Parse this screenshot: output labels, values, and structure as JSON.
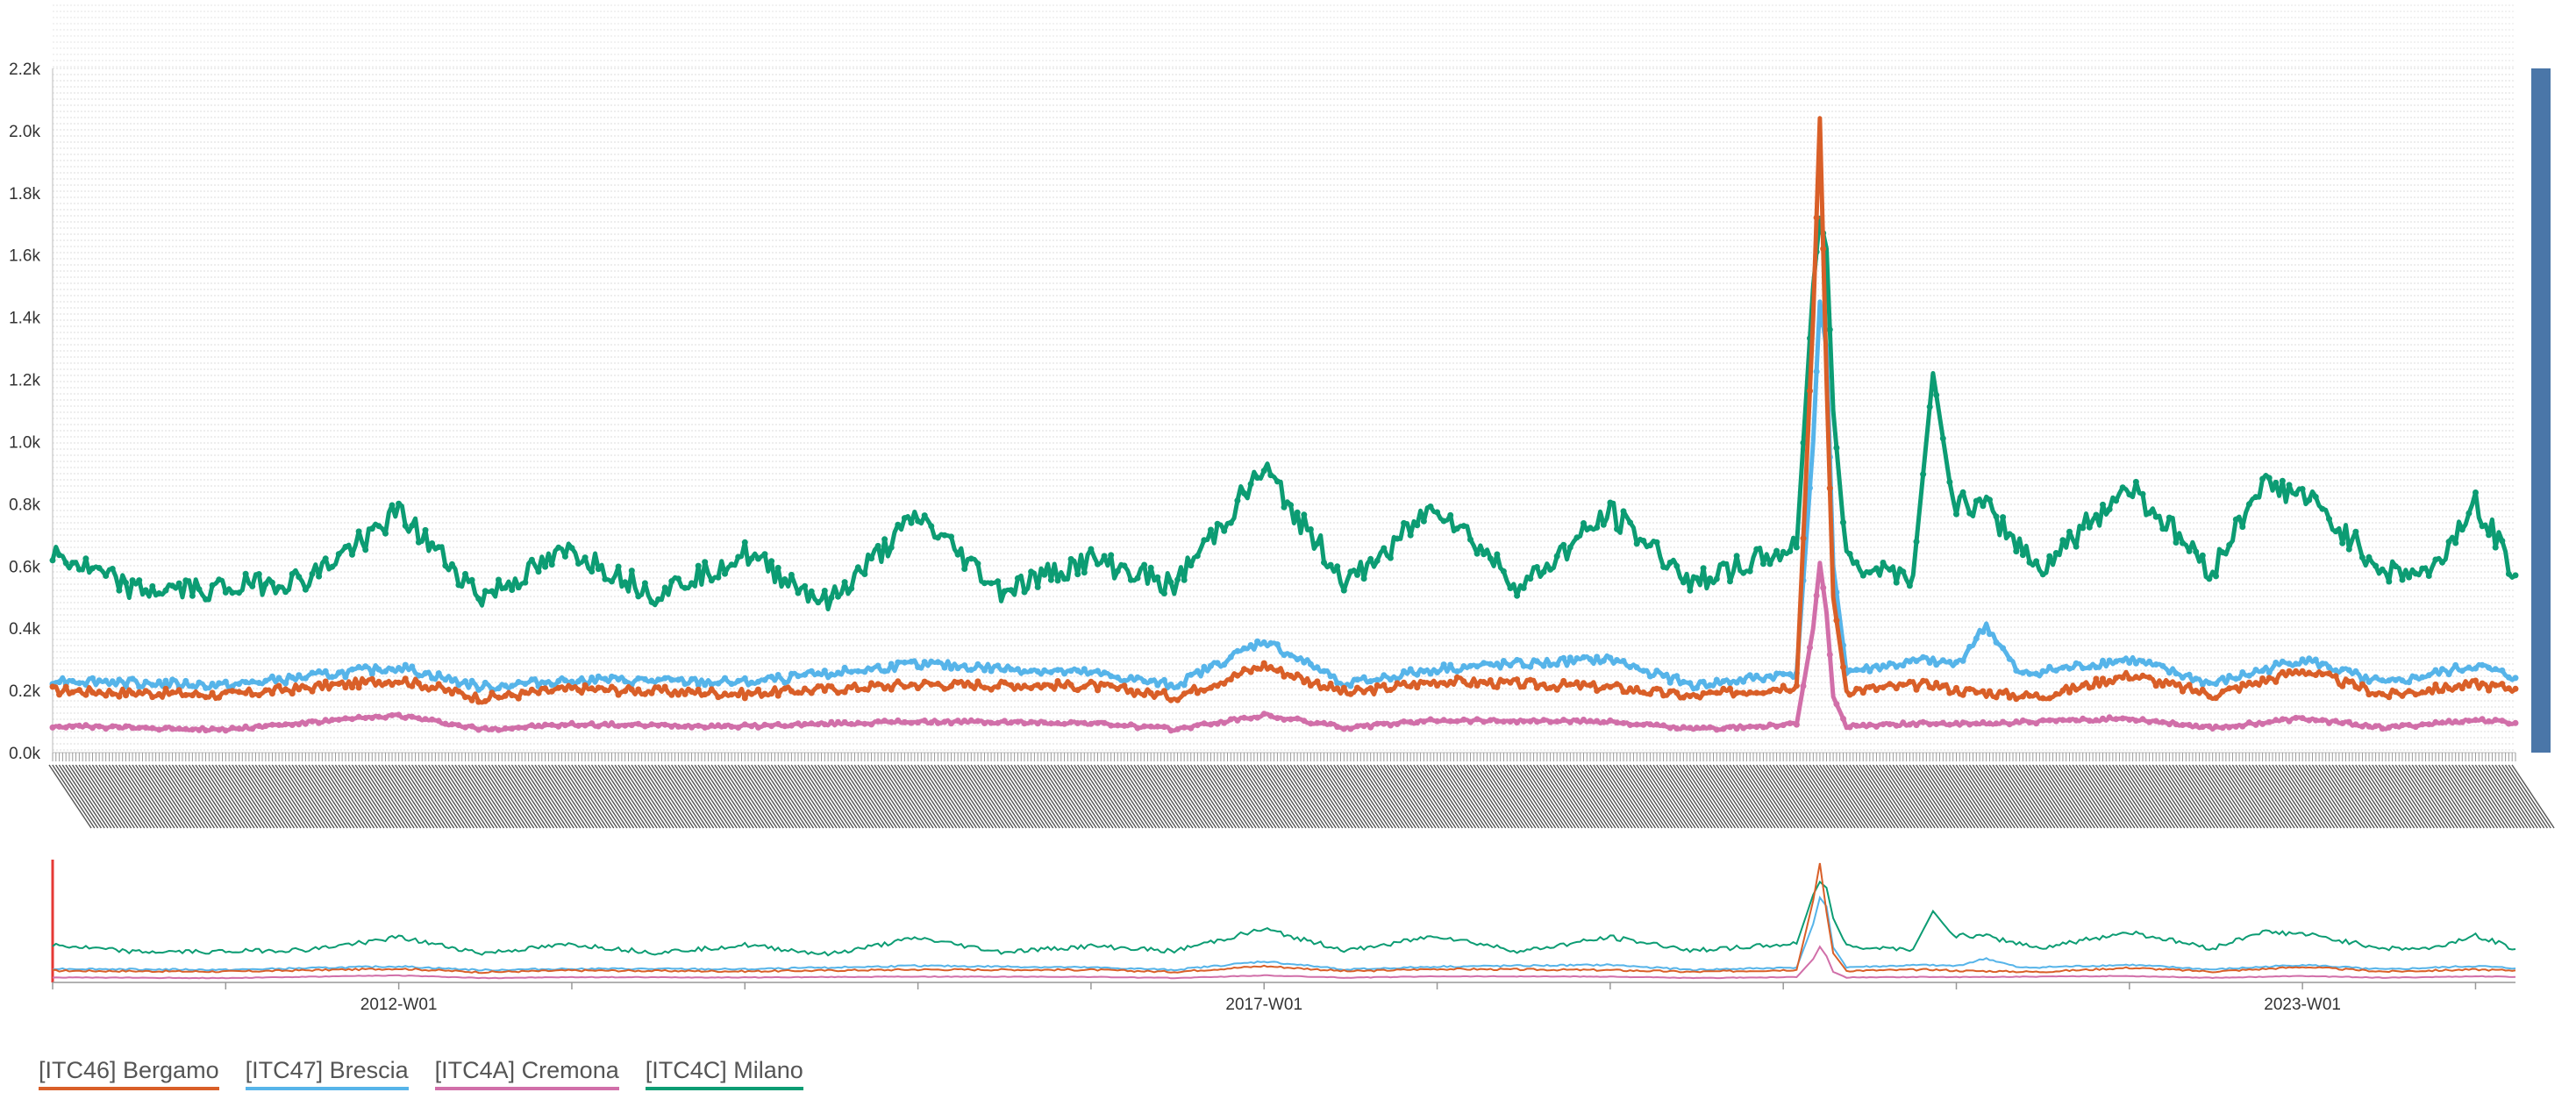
{
  "chart_data": {
    "type": "line",
    "y_ticks": [
      "0.0k",
      "0.2k",
      "0.4k",
      "0.6k",
      "0.8k",
      "1.0k",
      "1.2k",
      "1.4k",
      "1.6k",
      "1.8k",
      "2.0k",
      "2.2k"
    ],
    "ylim": [
      0,
      2200
    ],
    "x_range": [
      "2010-W01",
      "2024-W13"
    ],
    "navigator_x_ticks": [
      "2012-W01",
      "2017-W01",
      "2023-W01"
    ],
    "grid": true,
    "legend_position": "bottom-left",
    "series": [
      {
        "name": "[ITC46] Bergamo",
        "color": "#d95f28",
        "points": [
          [
            "2010-W01",
            200
          ],
          [
            "2011-W01",
            185
          ],
          [
            "2012-W01",
            235
          ],
          [
            "2012-W26",
            175
          ],
          [
            "2013-W01",
            205
          ],
          [
            "2014-W01",
            190
          ],
          [
            "2015-W01",
            220
          ],
          [
            "2016-W01",
            215
          ],
          [
            "2016-W26",
            180
          ],
          [
            "2017-W01",
            280
          ],
          [
            "2017-W26",
            190
          ],
          [
            "2018-W01",
            230
          ],
          [
            "2019-W01",
            210
          ],
          [
            "2019-W26",
            180
          ],
          [
            "2020-W05",
            215
          ],
          [
            "2020-W10",
            1400
          ],
          [
            "2020-W12",
            2040
          ],
          [
            "2020-W14",
            1200
          ],
          [
            "2020-W16",
            500
          ],
          [
            "2020-W20",
            200
          ],
          [
            "2020-W46",
            220
          ],
          [
            "2021-W01",
            200
          ],
          [
            "2021-W26",
            180
          ],
          [
            "2022-W01",
            250
          ],
          [
            "2022-W26",
            185
          ],
          [
            "2023-W01",
            265
          ],
          [
            "2023-W26",
            185
          ],
          [
            "2024-W01",
            220
          ],
          [
            "2024-W13",
            205
          ]
        ]
      },
      {
        "name": "[ITC47] Brescia",
        "color": "#56b4e9",
        "points": [
          [
            "2010-W01",
            235
          ],
          [
            "2011-W01",
            215
          ],
          [
            "2012-W01",
            275
          ],
          [
            "2012-W26",
            210
          ],
          [
            "2013-W01",
            235
          ],
          [
            "2014-W01",
            225
          ],
          [
            "2015-W01",
            285
          ],
          [
            "2016-W01",
            255
          ],
          [
            "2016-W26",
            215
          ],
          [
            "2017-W01",
            360
          ],
          [
            "2017-W26",
            220
          ],
          [
            "2018-W01",
            270
          ],
          [
            "2019-W01",
            300
          ],
          [
            "2019-W26",
            215
          ],
          [
            "2020-W05",
            255
          ],
          [
            "2020-W10",
            1000
          ],
          [
            "2020-W12",
            1450
          ],
          [
            "2020-W14",
            1300
          ],
          [
            "2020-W16",
            600
          ],
          [
            "2020-W20",
            260
          ],
          [
            "2020-W46",
            300
          ],
          [
            "2021-W01",
            280
          ],
          [
            "2021-W10",
            410
          ],
          [
            "2021-W20",
            250
          ],
          [
            "2022-W01",
            300
          ],
          [
            "2022-W26",
            220
          ],
          [
            "2023-W01",
            300
          ],
          [
            "2023-W26",
            220
          ],
          [
            "2024-W01",
            280
          ],
          [
            "2024-W13",
            240
          ]
        ]
      },
      {
        "name": "[ITC4A] Cremona",
        "color": "#d16fa9",
        "points": [
          [
            "2010-W01",
            85
          ],
          [
            "2011-W01",
            75
          ],
          [
            "2012-W01",
            120
          ],
          [
            "2012-W26",
            75
          ],
          [
            "2013-W01",
            90
          ],
          [
            "2014-W01",
            85
          ],
          [
            "2015-W01",
            100
          ],
          [
            "2016-W01",
            95
          ],
          [
            "2016-W26",
            75
          ],
          [
            "2017-W01",
            120
          ],
          [
            "2017-W26",
            80
          ],
          [
            "2018-W01",
            105
          ],
          [
            "2019-W01",
            100
          ],
          [
            "2019-W26",
            75
          ],
          [
            "2020-W05",
            90
          ],
          [
            "2020-W10",
            400
          ],
          [
            "2020-W12",
            610
          ],
          [
            "2020-W14",
            450
          ],
          [
            "2020-W16",
            180
          ],
          [
            "2020-W20",
            85
          ],
          [
            "2020-W46",
            95
          ],
          [
            "2021-W01",
            90
          ],
          [
            "2022-W01",
            110
          ],
          [
            "2022-W26",
            80
          ],
          [
            "2023-W01",
            110
          ],
          [
            "2023-W26",
            80
          ],
          [
            "2024-W01",
            105
          ],
          [
            "2024-W13",
            95
          ]
        ]
      },
      {
        "name": "[ITC4C] Milano",
        "color": "#0c9c73",
        "points": [
          [
            "2010-W01",
            640
          ],
          [
            "2010-W26",
            520
          ],
          [
            "2011-W01",
            530
          ],
          [
            "2011-W26",
            560
          ],
          [
            "2012-W01",
            770
          ],
          [
            "2012-W26",
            500
          ],
          [
            "2013-W01",
            650
          ],
          [
            "2013-W26",
            510
          ],
          [
            "2014-W01",
            640
          ],
          [
            "2014-W26",
            480
          ],
          [
            "2015-W01",
            760
          ],
          [
            "2015-W26",
            520
          ],
          [
            "2016-W01",
            620
          ],
          [
            "2016-W26",
            540
          ],
          [
            "2017-W01",
            910
          ],
          [
            "2017-W26",
            540
          ],
          [
            "2018-W01",
            800
          ],
          [
            "2018-W26",
            530
          ],
          [
            "2019-W01",
            770
          ],
          [
            "2019-W26",
            550
          ],
          [
            "2020-W05",
            660
          ],
          [
            "2020-W10",
            1500
          ],
          [
            "2020-W12",
            1720
          ],
          [
            "2020-W14",
            1620
          ],
          [
            "2020-W16",
            1100
          ],
          [
            "2020-W20",
            620
          ],
          [
            "2020-W40",
            570
          ],
          [
            "2020-W46",
            1220
          ],
          [
            "2020-W52",
            800
          ],
          [
            "2021-W10",
            790
          ],
          [
            "2021-W26",
            590
          ],
          [
            "2022-W01",
            860
          ],
          [
            "2022-W26",
            580
          ],
          [
            "2022-W40",
            860
          ],
          [
            "2023-W01",
            830
          ],
          [
            "2023-W26",
            580
          ],
          [
            "2023-W40",
            580
          ],
          [
            "2024-W01",
            810
          ],
          [
            "2024-W13",
            570
          ]
        ]
      }
    ]
  }
}
